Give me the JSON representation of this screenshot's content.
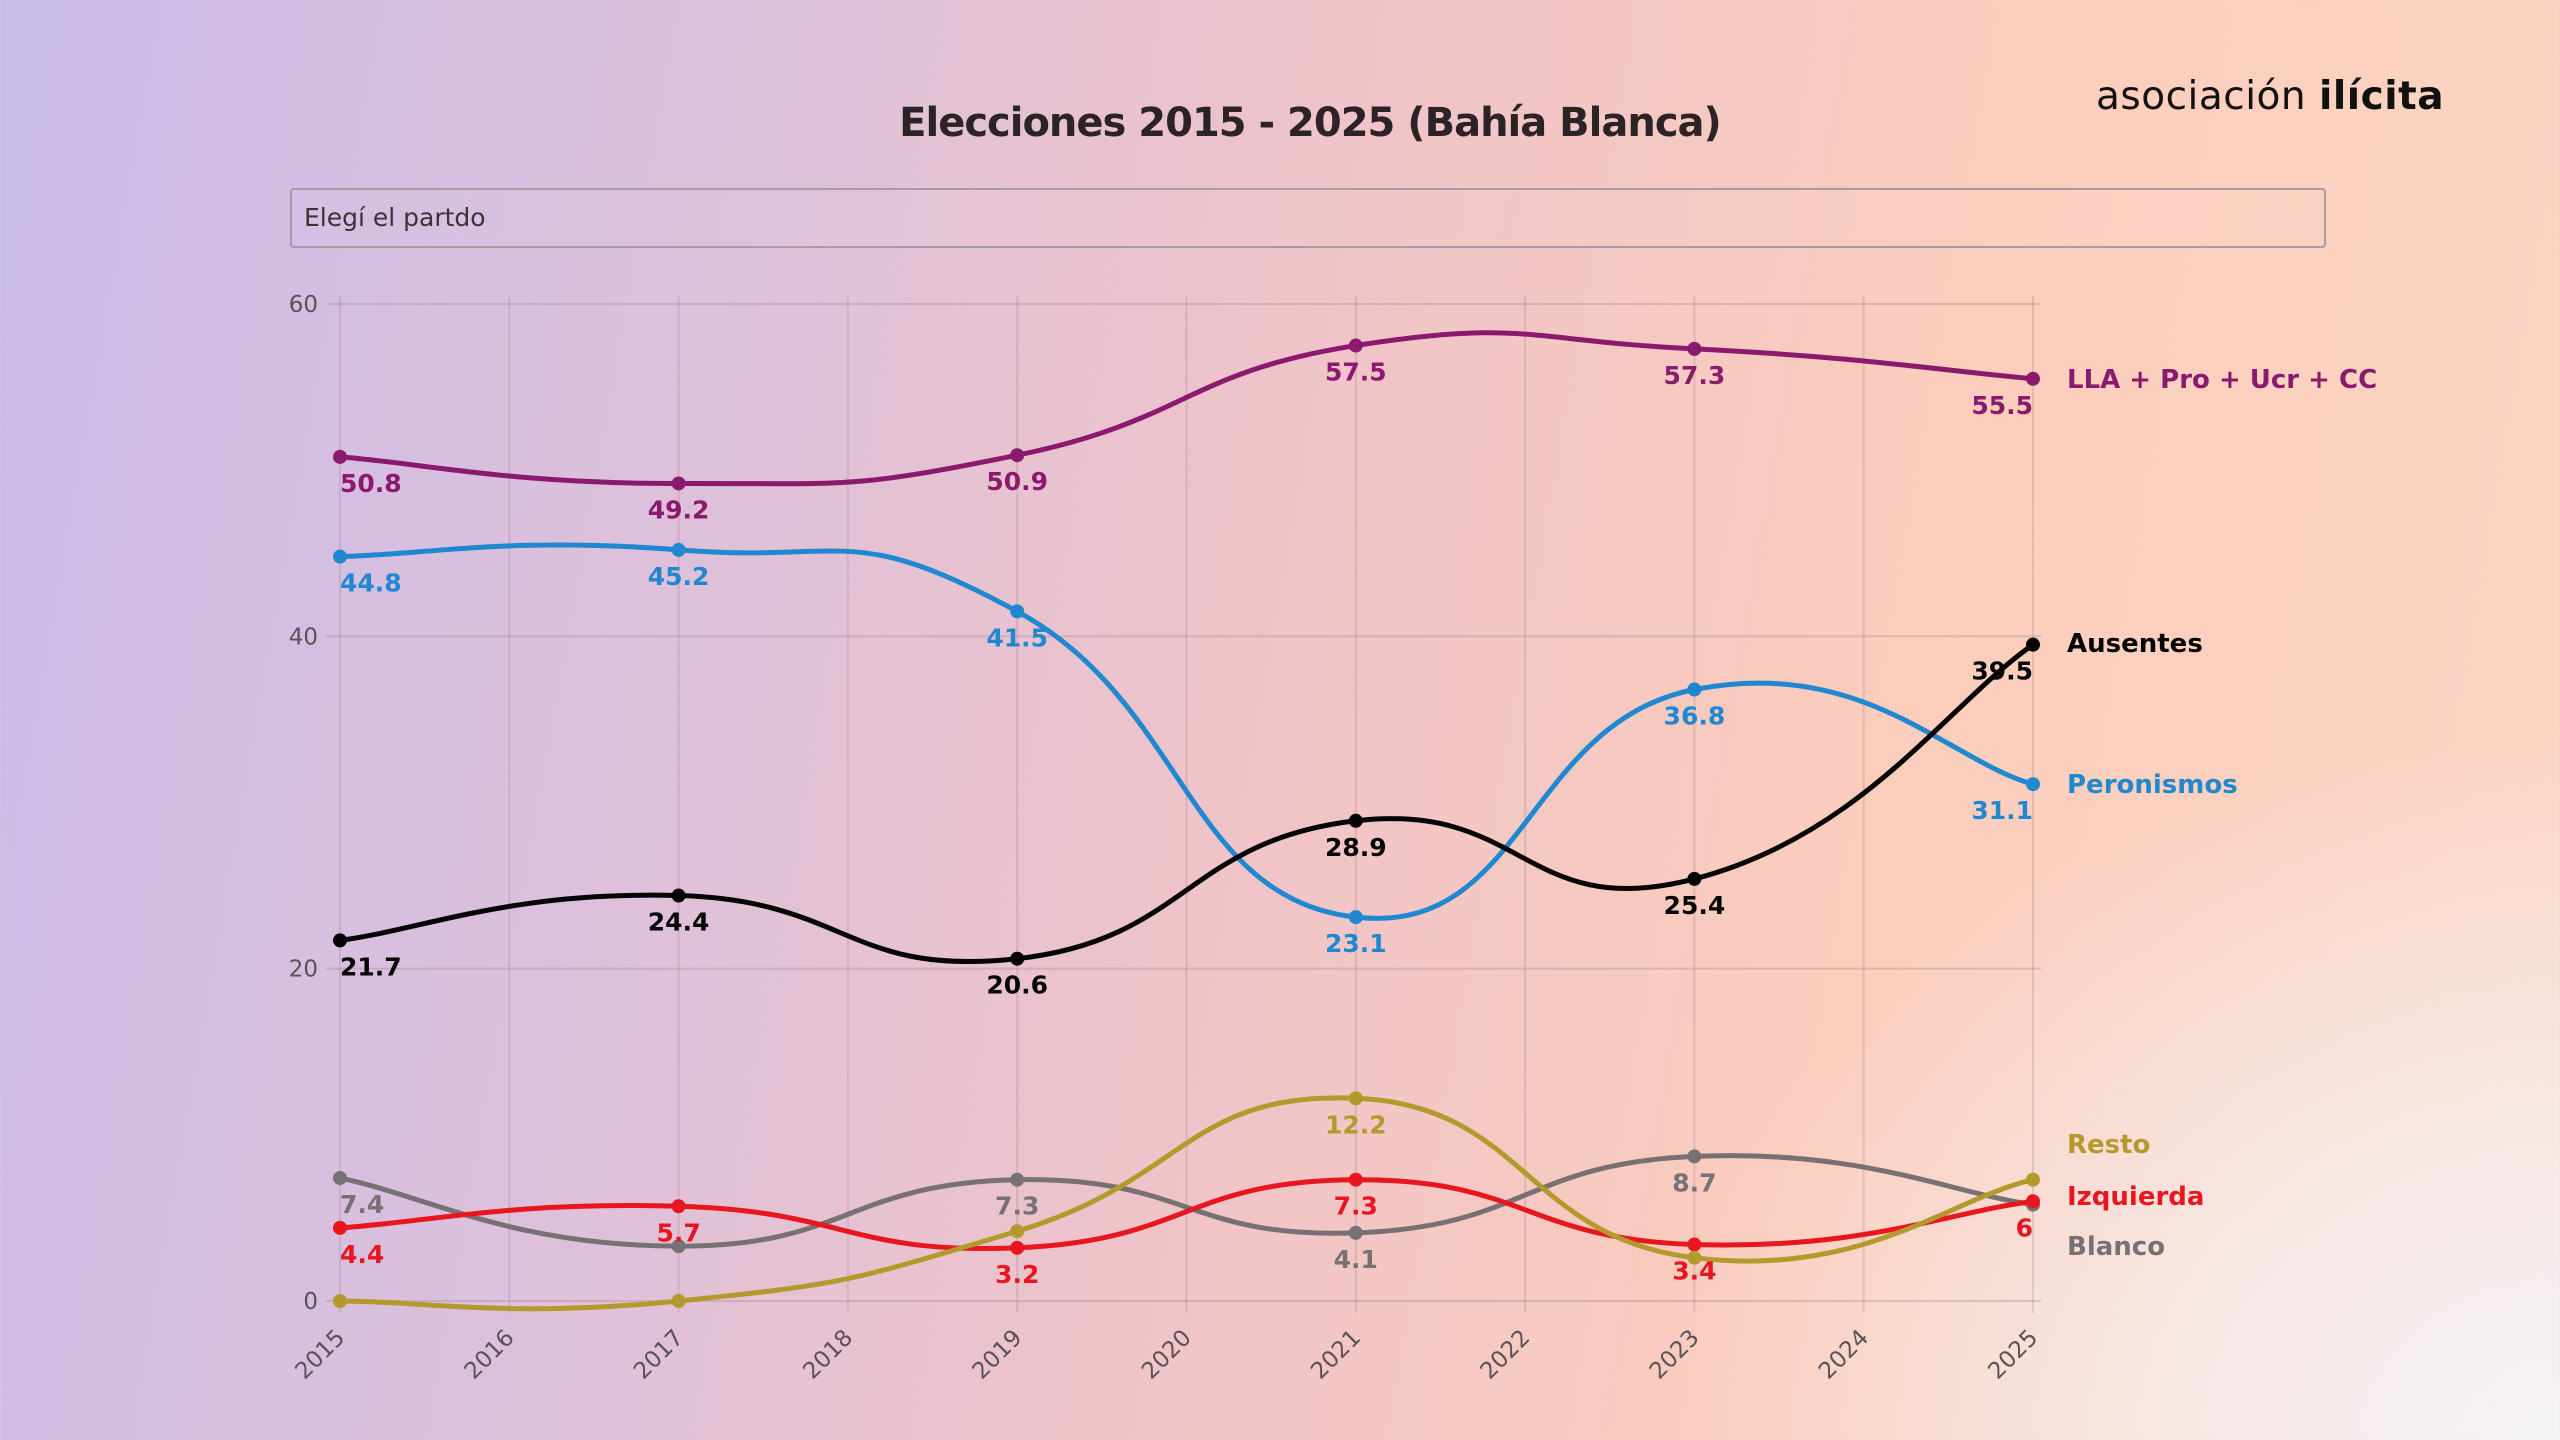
{
  "header": {
    "title": "Elecciones 2015 - 2025 (Bahía Blanca)",
    "logo_regular": "asociación",
    "logo_bold": "ilícita"
  },
  "dropdown": {
    "placeholder": "Elegí el partdo"
  },
  "colors": {
    "background_start": "#c9bce9",
    "background_mid": "#f0c4c8",
    "background_end": "#fcd6c4"
  },
  "chart_data": {
    "type": "line",
    "title": "Elecciones 2015 - 2025 (Bahía Blanca)",
    "xlabel": "",
    "ylabel": "",
    "x_ticks": [
      "2015",
      "2016",
      "2017",
      "2018",
      "2019",
      "2020",
      "2021",
      "2022",
      "2023",
      "2024",
      "2025"
    ],
    "y_ticks": [
      "0",
      "20",
      "40",
      "60"
    ],
    "ylim": [
      0,
      60
    ],
    "xlim": [
      2015,
      2025
    ],
    "grid": true,
    "legend_placement": "right (labels at line ends)",
    "x": [
      2015,
      2017,
      2019,
      2021,
      2023,
      2025
    ],
    "series": [
      {
        "name": "LLA + Pro + Ucr + CC",
        "color": "#8b1a6e",
        "values": [
          50.8,
          49.2,
          50.9,
          57.5,
          57.3,
          55.5
        ],
        "labels": [
          "50.8",
          "49.2",
          "50.9",
          "57.5",
          "57.3",
          "55.5"
        ]
      },
      {
        "name": "Ausentes",
        "color": "#050505",
        "values": [
          21.7,
          24.4,
          20.6,
          28.9,
          25.4,
          39.5
        ],
        "labels": [
          "21.7",
          "24.4",
          "20.6",
          "28.9",
          "25.4",
          "39.5"
        ]
      },
      {
        "name": "Peronismos",
        "color": "#1f88d0",
        "values": [
          44.8,
          45.2,
          41.5,
          23.1,
          36.8,
          31.1
        ],
        "labels": [
          "44.8",
          "45.2",
          "41.5",
          "23.1",
          "36.8",
          "31.1"
        ]
      },
      {
        "name": "Resto",
        "color": "#b49a2c",
        "values": [
          0,
          0,
          4.2,
          12.2,
          2.6,
          7.3
        ],
        "labels": [
          "",
          "",
          "",
          "12.2",
          "",
          ""
        ]
      },
      {
        "name": "Izquierda",
        "color": "#e8161e",
        "values": [
          4.4,
          5.7,
          3.2,
          7.3,
          3.4,
          6
        ],
        "labels": [
          "4.4",
          "5.7",
          "3.2",
          "7.3",
          "3.4",
          "6"
        ]
      },
      {
        "name": "Blanco",
        "color": "#777173",
        "values": [
          7.4,
          3.3,
          7.3,
          4.1,
          8.7,
          5.8
        ],
        "labels": [
          "7.4",
          "",
          "7.3",
          "4.1",
          "8.7",
          ""
        ]
      }
    ]
  }
}
